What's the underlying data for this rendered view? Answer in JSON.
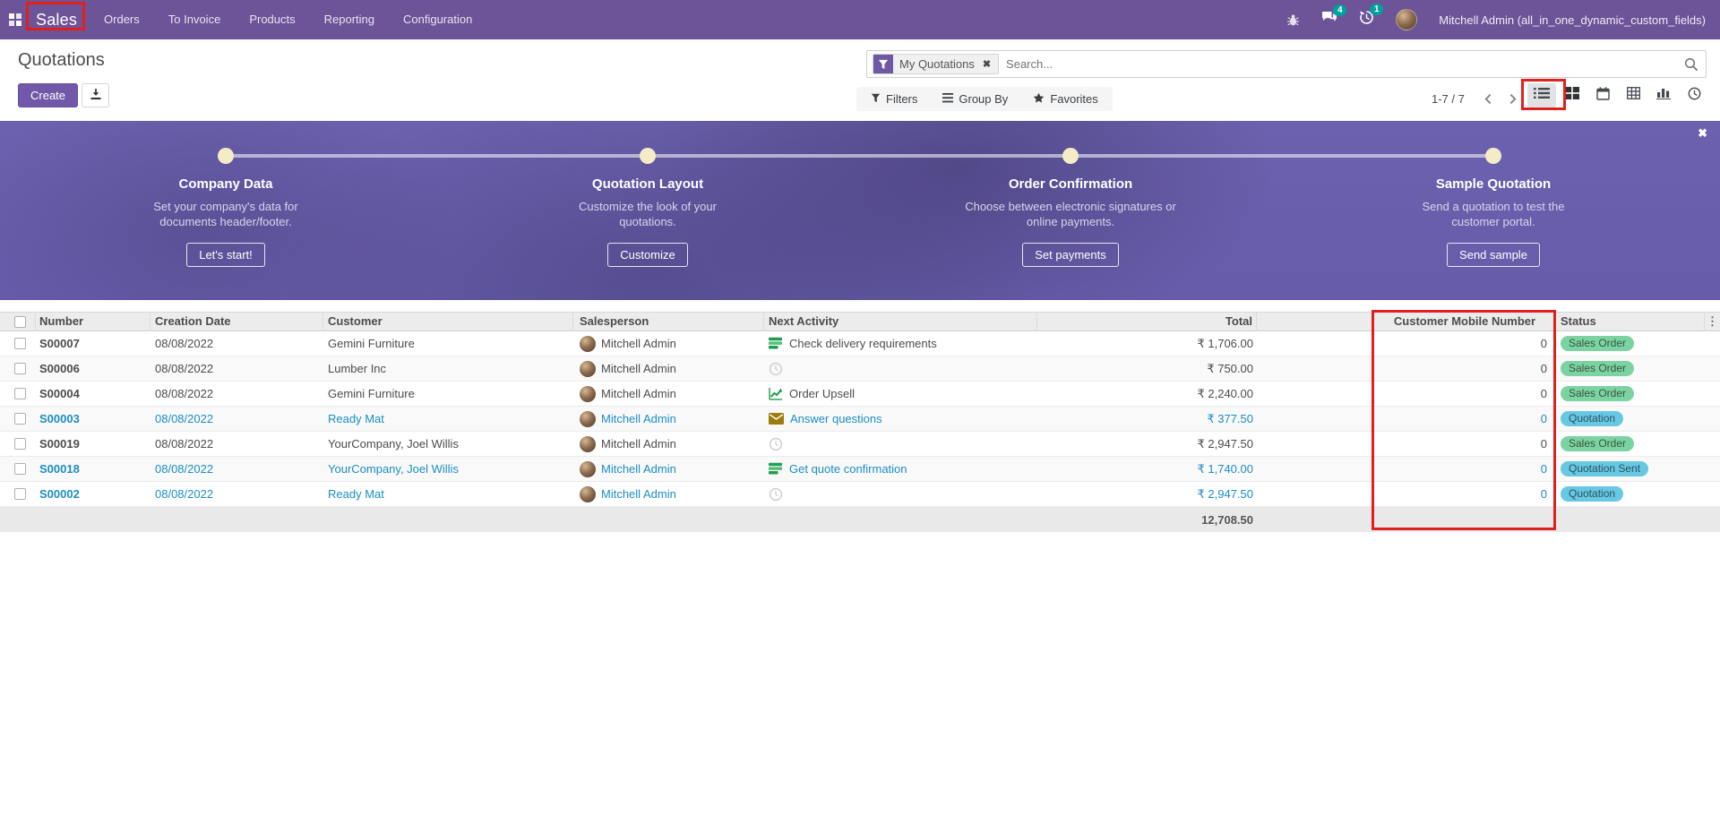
{
  "topbar": {
    "app_name": "Sales",
    "menus": [
      "Orders",
      "To Invoice",
      "Products",
      "Reporting",
      "Configuration"
    ],
    "messages_badge": "4",
    "activities_badge": "1",
    "user": "Mitchell Admin (all_in_one_dynamic_custom_fields)"
  },
  "breadcrumb": {
    "title": "Quotations"
  },
  "actions": {
    "create_label": "Create"
  },
  "search": {
    "facet_label": "My Quotations",
    "placeholder": "Search..."
  },
  "control": {
    "filters": "Filters",
    "group_by": "Group By",
    "favorites": "Favorites",
    "pager": "1-7 / 7"
  },
  "view_switcher": [
    "list",
    "kanban",
    "calendar",
    "pivot",
    "graph",
    "activity"
  ],
  "banner": {
    "steps": [
      {
        "title": "Company Data",
        "desc": "Set your company's data for documents header/footer.",
        "button": "Let's start!"
      },
      {
        "title": "Quotation Layout",
        "desc": "Customize the look of your quotations.",
        "button": "Customize"
      },
      {
        "title": "Order Confirmation",
        "desc": "Choose between electronic signatures or online payments.",
        "button": "Set payments"
      },
      {
        "title": "Sample Quotation",
        "desc": "Send a quotation to test the customer portal.",
        "button": "Send sample"
      }
    ]
  },
  "table": {
    "columns": [
      "Number",
      "Creation Date",
      "Customer",
      "Salesperson",
      "Next Activity",
      "Total",
      "Customer Mobile Number",
      "Status"
    ],
    "rows": [
      {
        "number": "S00007",
        "date": "08/08/2022",
        "customer": "Gemini Furniture",
        "salesperson": "Mitchell Admin",
        "activity": "Check delivery requirements",
        "activity_icon": "tasks",
        "total": "₹ 1,706.00",
        "mobile": "0",
        "status": "Sales Order",
        "status_kind": "success",
        "link": false
      },
      {
        "number": "S00006",
        "date": "08/08/2022",
        "customer": "Lumber Inc",
        "salesperson": "Mitchell Admin",
        "activity": "",
        "activity_icon": "clock",
        "total": "₹ 750.00",
        "mobile": "0",
        "status": "Sales Order",
        "status_kind": "success",
        "link": false
      },
      {
        "number": "S00004",
        "date": "08/08/2022",
        "customer": "Gemini Furniture",
        "salesperson": "Mitchell Admin",
        "activity": "Order Upsell",
        "activity_icon": "chart",
        "total": "₹ 2,240.00",
        "mobile": "0",
        "status": "Sales Order",
        "status_kind": "success",
        "link": false
      },
      {
        "number": "S00003",
        "date": "08/08/2022",
        "customer": "Ready Mat",
        "salesperson": "Mitchell Admin",
        "activity": "Answer questions",
        "activity_icon": "envelope",
        "total": "₹ 377.50",
        "mobile": "0",
        "status": "Quotation",
        "status_kind": "info",
        "link": true
      },
      {
        "number": "S00019",
        "date": "08/08/2022",
        "customer": "YourCompany, Joel Willis",
        "salesperson": "Mitchell Admin",
        "activity": "",
        "activity_icon": "clock",
        "total": "₹ 2,947.50",
        "mobile": "0",
        "status": "Sales Order",
        "status_kind": "success",
        "link": false
      },
      {
        "number": "S00018",
        "date": "08/08/2022",
        "customer": "YourCompany, Joel Willis",
        "salesperson": "Mitchell Admin",
        "activity": "Get quote confirmation",
        "activity_icon": "tasks",
        "total": "₹ 1,740.00",
        "mobile": "0",
        "status": "Quotation Sent",
        "status_kind": "info",
        "link": true
      },
      {
        "number": "S00002",
        "date": "08/08/2022",
        "customer": "Ready Mat",
        "salesperson": "Mitchell Admin",
        "activity": "",
        "activity_icon": "clock",
        "total": "₹ 2,947.50",
        "mobile": "0",
        "status": "Quotation",
        "status_kind": "info",
        "link": true
      }
    ],
    "footer_total": "12,708.50"
  },
  "icons": {
    "apps": "grid",
    "bug": "bug",
    "messages": "chat-bubbles",
    "activities": "clock-arrow",
    "filter": "funnel",
    "group_by": "bars",
    "favorites": "star",
    "search": "magnifier",
    "download": "download-arrow",
    "options": "vertical-dots",
    "close": "x",
    "activity_tasks": "green-task-list",
    "activity_chart": "green-line-chart",
    "activity_envelope": "yellow-envelope",
    "activity_clock": "gray-clock"
  },
  "colors": {
    "topbar": "#6d5397",
    "accent": "#7158a8",
    "link": "#1b8ec2",
    "badge_success_bg": "#7cd3a2",
    "badge_info_bg": "#66c8e3",
    "annotation": "#e0201d",
    "banner": "#6c61ae",
    "step_dot": "#f3ecc6",
    "systray_badge": "#00a09d"
  }
}
